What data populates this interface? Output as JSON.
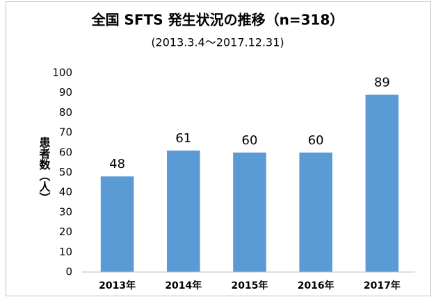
{
  "chart_data": {
    "type": "bar",
    "title": "全国 SFTS 発生状況の推移（n=318）",
    "subtitle": "(2013.3.4～2017.12.31)",
    "y_label": "患者数（人）",
    "categories": [
      "2013年",
      "2014年",
      "2015年",
      "2016年",
      "2017年"
    ],
    "values": [
      48,
      61,
      60,
      60,
      89
    ],
    "color": "#5b9bd5",
    "ylim": [
      0,
      100
    ],
    "yticks": [
      0,
      10,
      20,
      30,
      40,
      50,
      60,
      70,
      80,
      90,
      100
    ],
    "grid": false,
    "data_labels": true
  }
}
